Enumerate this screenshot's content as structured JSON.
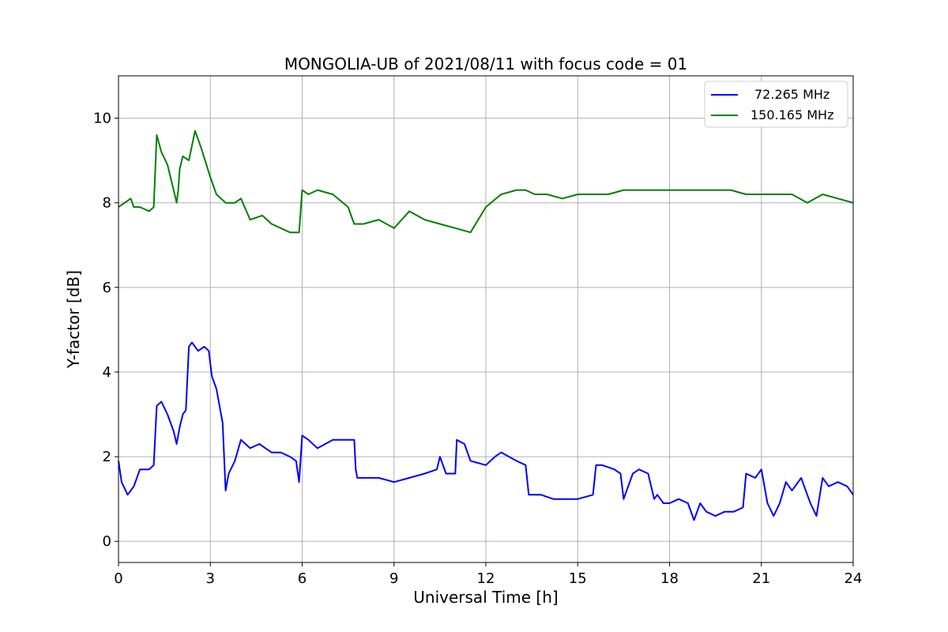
{
  "chart_data": {
    "type": "line",
    "title": "MONGOLIA-UB of 2021/08/11 with focus code = 01",
    "xlabel": "Universal Time [h]",
    "ylabel": "Y-factor [dB]",
    "xlim": [
      0,
      24
    ],
    "ylim": [
      -0.5,
      11
    ],
    "xticks": [
      0,
      3,
      6,
      9,
      12,
      15,
      18,
      21,
      24
    ],
    "yticks": [
      0,
      2,
      4,
      6,
      8,
      10
    ],
    "grid": true,
    "legend_position": "top-right",
    "series": [
      {
        "name": "72.265 MHz",
        "color": "#0000ff",
        "x": [
          0,
          0.1,
          0.3,
          0.5,
          0.7,
          1.0,
          1.15,
          1.25,
          1.4,
          1.6,
          1.8,
          1.9,
          2.0,
          2.1,
          2.2,
          2.3,
          2.4,
          2.6,
          2.8,
          2.95,
          3.05,
          3.2,
          3.4,
          3.5,
          3.6,
          3.8,
          4.0,
          4.3,
          4.6,
          5.0,
          5.3,
          5.6,
          5.8,
          5.9,
          6.0,
          6.2,
          6.5,
          7.0,
          7.5,
          7.7,
          7.75,
          7.8,
          8.0,
          8.5,
          9.0,
          9.5,
          10.0,
          10.4,
          10.5,
          10.7,
          11.0,
          11.05,
          11.3,
          11.5,
          12.0,
          12.3,
          12.5,
          13.0,
          13.3,
          13.4,
          13.8,
          14.2,
          14.6,
          15.0,
          15.5,
          15.6,
          15.8,
          16.2,
          16.4,
          16.5,
          16.8,
          17.0,
          17.3,
          17.5,
          17.6,
          17.8,
          18.0,
          18.3,
          18.6,
          18.8,
          19.0,
          19.2,
          19.5,
          19.8,
          20.1,
          20.4,
          20.5,
          20.8,
          21.0,
          21.2,
          21.4,
          21.6,
          21.8,
          22.0,
          22.3,
          22.6,
          22.8,
          23.0,
          23.2,
          23.5,
          23.8,
          24.0
        ],
        "y": [
          1.9,
          1.4,
          1.1,
          1.3,
          1.7,
          1.7,
          1.8,
          3.2,
          3.3,
          3.0,
          2.6,
          2.3,
          2.7,
          3.0,
          3.1,
          4.6,
          4.7,
          4.5,
          4.6,
          4.5,
          3.9,
          3.6,
          2.8,
          1.2,
          1.6,
          1.9,
          2.4,
          2.2,
          2.3,
          2.1,
          2.1,
          2.0,
          1.9,
          1.4,
          2.5,
          2.4,
          2.2,
          2.4,
          2.4,
          2.4,
          1.7,
          1.5,
          1.5,
          1.5,
          1.4,
          1.5,
          1.6,
          1.7,
          2.0,
          1.6,
          1.6,
          2.4,
          2.3,
          1.9,
          1.8,
          2.0,
          2.1,
          1.9,
          1.8,
          1.1,
          1.1,
          1.0,
          1.0,
          1.0,
          1.1,
          1.8,
          1.8,
          1.7,
          1.6,
          1.0,
          1.6,
          1.7,
          1.6,
          1.0,
          1.1,
          0.9,
          0.9,
          1.0,
          0.9,
          0.5,
          0.9,
          0.7,
          0.6,
          0.7,
          0.7,
          0.8,
          1.6,
          1.5,
          1.7,
          0.9,
          0.6,
          0.9,
          1.4,
          1.2,
          1.5,
          0.9,
          0.6,
          1.5,
          1.3,
          1.4,
          1.3,
          1.1
        ]
      },
      {
        "name": "150.165 MHz",
        "color": "#008000",
        "x": [
          0,
          0.2,
          0.4,
          0.5,
          0.7,
          1.0,
          1.15,
          1.25,
          1.4,
          1.6,
          1.8,
          1.9,
          1.95,
          2.0,
          2.1,
          2.3,
          2.5,
          2.7,
          3.0,
          3.2,
          3.5,
          3.8,
          4.0,
          4.3,
          4.7,
          5.0,
          5.3,
          5.6,
          5.9,
          6.0,
          6.2,
          6.5,
          7.0,
          7.5,
          7.7,
          8.0,
          8.5,
          9.0,
          9.5,
          10.0,
          10.5,
          11.0,
          11.5,
          12.0,
          12.5,
          13.0,
          13.3,
          13.6,
          14.0,
          14.5,
          15.0,
          15.5,
          16.0,
          16.5,
          17.0,
          17.5,
          18.0,
          18.2,
          18.5,
          19.0,
          19.5,
          20.0,
          20.5,
          21.0,
          21.5,
          22.0,
          22.5,
          23.0,
          23.5,
          24.0
        ],
        "y": [
          7.9,
          8.0,
          8.1,
          7.9,
          7.9,
          7.8,
          7.9,
          9.6,
          9.2,
          8.9,
          8.3,
          8.0,
          8.3,
          8.8,
          9.1,
          9.0,
          9.7,
          9.3,
          8.6,
          8.2,
          8.0,
          8.0,
          8.1,
          7.6,
          7.7,
          7.5,
          7.4,
          7.3,
          7.3,
          8.3,
          8.2,
          8.3,
          8.2,
          7.9,
          7.5,
          7.5,
          7.6,
          7.4,
          7.8,
          7.6,
          7.5,
          7.4,
          7.3,
          7.9,
          8.2,
          8.3,
          8.3,
          8.2,
          8.2,
          8.1,
          8.2,
          8.2,
          8.2,
          8.3,
          8.3,
          8.3,
          8.3,
          8.3,
          8.3,
          8.3,
          8.3,
          8.3,
          8.2,
          8.2,
          8.2,
          8.2,
          8.0,
          8.2,
          8.1,
          8.0
        ]
      }
    ]
  }
}
